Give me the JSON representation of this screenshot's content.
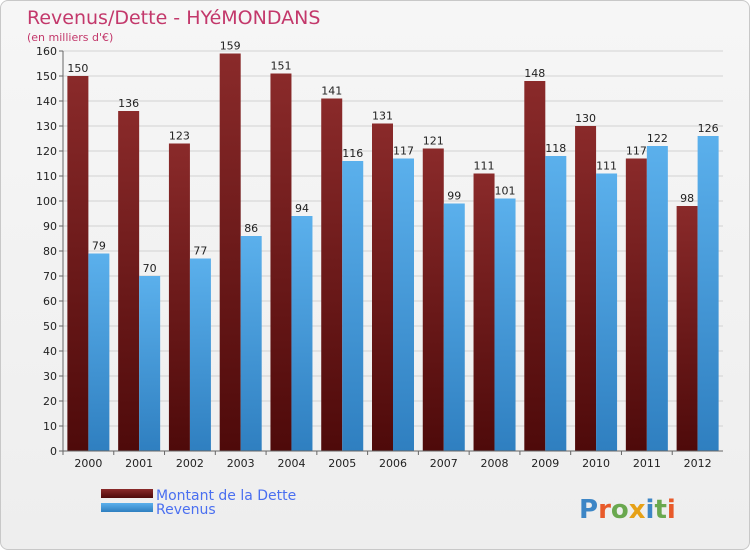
{
  "chart_data": {
    "type": "bar",
    "title": "Revenus/Dette - HYéMONDANS",
    "subtitle": "(en milliers d'€)",
    "categories": [
      "2000",
      "2001",
      "2002",
      "2003",
      "2004",
      "2005",
      "2006",
      "2007",
      "2008",
      "2009",
      "2010",
      "2011",
      "2012"
    ],
    "series": [
      {
        "name": "Montant de la Dette",
        "color": "#7a1c1c",
        "values": [
          150,
          136,
          123,
          159,
          151,
          141,
          131,
          121,
          111,
          148,
          130,
          117,
          98
        ]
      },
      {
        "name": "Revenus",
        "color": "#4fa4e4",
        "values": [
          79,
          70,
          77,
          86,
          94,
          116,
          117,
          99,
          101,
          118,
          111,
          122,
          126
        ]
      }
    ],
    "ylim": [
      0,
      160
    ],
    "ytick_step": 10,
    "grid": true,
    "legend": "bottom-left",
    "xlabel": "",
    "ylabel": ""
  },
  "logo": {
    "text": "Proxiti"
  }
}
